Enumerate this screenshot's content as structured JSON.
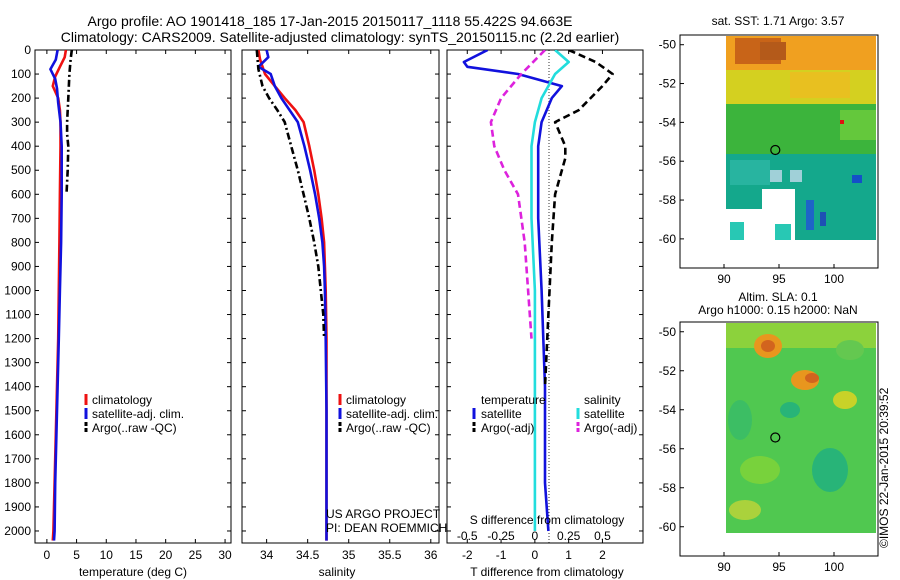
{
  "header": {
    "line1": "Argo profile: AO 1901418_185 17-Jan-2015 20150117_1118 55.422S 94.663E",
    "line2": "Climatology: CARS2009. Satellite-adjusted climatology: synTS_20150115.nc (2.2d earlier)"
  },
  "stamp": "©IMOS 22-Jan-2015 20:39:52",
  "colors": {
    "climatology": "#ee1111",
    "satellite": "#1111dd",
    "argo": "#000000",
    "sat_salinity": "#22dddd",
    "argo_salinity": "#dd22dd"
  },
  "chart_data": [
    {
      "type": "line",
      "id": "temperature",
      "xlabel": "temperature (deg C)",
      "xlim": [
        -2,
        31
      ],
      "xticks": [
        0,
        5,
        10,
        15,
        20,
        25,
        30
      ],
      "ylim": [
        0,
        2050
      ],
      "yticks": [
        0,
        100,
        200,
        300,
        400,
        500,
        600,
        700,
        800,
        900,
        1000,
        1100,
        1200,
        1300,
        1400,
        1500,
        1600,
        1700,
        1800,
        1900,
        2000
      ],
      "legend": [
        "climatology",
        "satellite-adj. clim.",
        "Argo(..raw -QC)"
      ],
      "series": [
        {
          "name": "climatology",
          "style": "solid",
          "color_key": "climatology",
          "points": [
            [
              3.2,
              0
            ],
            [
              3.0,
              30
            ],
            [
              2.2,
              70
            ],
            [
              1.4,
              110
            ],
            [
              1.0,
              150
            ],
            [
              1.9,
              200
            ],
            [
              2.2,
              250
            ],
            [
              2.3,
              300
            ],
            [
              2.3,
              400
            ],
            [
              2.2,
              600
            ],
            [
              2.1,
              800
            ],
            [
              2.0,
              1000
            ],
            [
              1.9,
              1200
            ],
            [
              1.7,
              1400
            ],
            [
              1.5,
              1600
            ],
            [
              1.3,
              1800
            ],
            [
              1.1,
              2000
            ],
            [
              1.0,
              2040
            ]
          ]
        },
        {
          "name": "satellite-adj. clim.",
          "style": "solid",
          "color_key": "satellite",
          "points": [
            [
              1.8,
              0
            ],
            [
              1.5,
              40
            ],
            [
              0.6,
              80
            ],
            [
              1.4,
              120
            ],
            [
              1.7,
              160
            ],
            [
              1.9,
              220
            ],
            [
              2.3,
              300
            ],
            [
              2.5,
              400
            ],
            [
              2.5,
              600
            ],
            [
              2.4,
              800
            ],
            [
              2.2,
              1000
            ],
            [
              2.0,
              1200
            ],
            [
              1.8,
              1400
            ],
            [
              1.6,
              1600
            ],
            [
              1.4,
              1800
            ],
            [
              1.3,
              2000
            ],
            [
              1.2,
              2040
            ]
          ]
        },
        {
          "name": "Argo(..raw -QC)",
          "style": "dashdot",
          "color_key": "argo",
          "points": [
            [
              4.2,
              0
            ],
            [
              4.0,
              40
            ],
            [
              3.8,
              100
            ],
            [
              3.6,
              200
            ],
            [
              3.4,
              300
            ],
            [
              3.4,
              350
            ],
            [
              3.6,
              400
            ],
            [
              3.5,
              500
            ],
            [
              3.3,
              600
            ]
          ]
        }
      ]
    },
    {
      "type": "line",
      "id": "salinity",
      "xlabel": "salinity",
      "xlim": [
        33.7,
        36.1
      ],
      "xticks": [
        34,
        34.5,
        35,
        35.5,
        36
      ],
      "ylim": [
        0,
        2050
      ],
      "legend": [
        "climatology",
        "satellite-adj. clim.",
        "Argo(..raw -QC)"
      ],
      "annotation": [
        "US ARGO PROJECT",
        "PI: DEAN ROEMMICH"
      ],
      "series": [
        {
          "name": "climatology",
          "style": "solid",
          "color_key": "climatology",
          "points": [
            [
              33.9,
              0
            ],
            [
              33.92,
              40
            ],
            [
              33.98,
              100
            ],
            [
              34.1,
              150
            ],
            [
              34.22,
              200
            ],
            [
              34.35,
              250
            ],
            [
              34.45,
              300
            ],
            [
              34.52,
              400
            ],
            [
              34.58,
              500
            ],
            [
              34.63,
              600
            ],
            [
              34.67,
              700
            ],
            [
              34.7,
              800
            ],
            [
              34.71,
              900
            ],
            [
              34.72,
              1000
            ],
            [
              34.73,
              1200
            ],
            [
              34.73,
              1500
            ],
            [
              34.73,
              2000
            ],
            [
              34.73,
              2040
            ]
          ]
        },
        {
          "name": "satellite-adj. clim.",
          "style": "solid",
          "color_key": "satellite",
          "points": [
            [
              34.0,
              0
            ],
            [
              34.02,
              30
            ],
            [
              33.9,
              70
            ],
            [
              34.05,
              100
            ],
            [
              34.1,
              150
            ],
            [
              34.18,
              200
            ],
            [
              34.28,
              250
            ],
            [
              34.38,
              300
            ],
            [
              34.46,
              400
            ],
            [
              34.53,
              500
            ],
            [
              34.59,
              600
            ],
            [
              34.64,
              700
            ],
            [
              34.68,
              800
            ],
            [
              34.7,
              900
            ],
            [
              34.71,
              1000
            ],
            [
              34.72,
              1200
            ],
            [
              34.73,
              1500
            ],
            [
              34.73,
              2000
            ],
            [
              34.73,
              2040
            ]
          ]
        },
        {
          "name": "Argo(..raw -QC)",
          "style": "dashdot",
          "color_key": "argo",
          "points": [
            [
              33.88,
              0
            ],
            [
              33.9,
              80
            ],
            [
              33.95,
              150
            ],
            [
              34.03,
              200
            ],
            [
              34.13,
              250
            ],
            [
              34.22,
              300
            ],
            [
              34.3,
              400
            ],
            [
              34.38,
              500
            ],
            [
              34.45,
              600
            ],
            [
              34.52,
              700
            ],
            [
              34.58,
              800
            ],
            [
              34.63,
              900
            ],
            [
              34.66,
              1000
            ],
            [
              34.69,
              1100
            ],
            [
              34.7,
              1200
            ]
          ]
        }
      ]
    },
    {
      "type": "line",
      "id": "differences",
      "xlabel": "T difference from climatology",
      "xlabel_top": "S difference from climatology",
      "xlim": [
        -2.6,
        3.2
      ],
      "xticks": [
        -2,
        -1,
        0,
        1,
        2
      ],
      "sticks": [
        {
          "label": "-0.5",
          "t": -2.0
        },
        {
          "label": "-0.25",
          "t": -1.0
        },
        {
          "label": "0",
          "t": 0
        },
        {
          "label": "0.25",
          "t": 1.0
        },
        {
          "label": "0.5",
          "t": 2.0
        }
      ],
      "ylim": [
        0,
        2050
      ],
      "legend_temperature_title": "temperature",
      "legend_salinity_title": "salinity",
      "legend_temperature": [
        "satellite",
        "Argo(-adj)"
      ],
      "legend_salinity": [
        "satellite",
        "Argo(-adj)"
      ],
      "series": [
        {
          "name": "temperature satellite",
          "style": "solid",
          "color_key": "satellite",
          "points": [
            [
              -1.4,
              0
            ],
            [
              -2.1,
              50
            ],
            [
              -2.0,
              70
            ],
            [
              -0.5,
              100
            ],
            [
              0.8,
              150
            ],
            [
              0.5,
              200
            ],
            [
              0.2,
              300
            ],
            [
              0.1,
              400
            ],
            [
              0.1,
              700
            ],
            [
              0.2,
              1000
            ],
            [
              0.3,
              1400
            ],
            [
              0.3,
              1800
            ],
            [
              0.4,
              2000
            ]
          ]
        },
        {
          "name": "temperature Argo(-adj)",
          "style": "dashed",
          "color_key": "argo",
          "points": [
            [
              1.0,
              0
            ],
            [
              1.8,
              50
            ],
            [
              2.3,
              100
            ],
            [
              2.0,
              150
            ],
            [
              1.3,
              250
            ],
            [
              0.6,
              300
            ],
            [
              0.9,
              400
            ],
            [
              0.9,
              450
            ],
            [
              0.8,
              500
            ],
            [
              0.6,
              600
            ],
            [
              0.5,
              800
            ],
            [
              0.4,
              1100
            ],
            [
              0.3,
              1400
            ]
          ]
        },
        {
          "name": "salinity satellite",
          "style": "solid",
          "color_key": "sat_salinity",
          "points": [
            [
              0.6,
              0
            ],
            [
              1.0,
              50
            ],
            [
              0.6,
              100
            ],
            [
              0.2,
              200
            ],
            [
              0.0,
              300
            ],
            [
              -0.1,
              400
            ],
            [
              -0.1,
              700
            ],
            [
              0.0,
              1000
            ],
            [
              0.0,
              1400
            ],
            [
              0.0,
              1800
            ],
            [
              0.0,
              2000
            ]
          ]
        },
        {
          "name": "salinity Argo(-adj)",
          "style": "dashed",
          "color_key": "argo_salinity",
          "points": [
            [
              0.3,
              0
            ],
            [
              -0.4,
              100
            ],
            [
              -1.0,
              200
            ],
            [
              -1.3,
              300
            ],
            [
              -1.2,
              400
            ],
            [
              -0.9,
              500
            ],
            [
              -0.5,
              600
            ],
            [
              -0.3,
              800
            ],
            [
              -0.2,
              1000
            ],
            [
              -0.1,
              1200
            ]
          ]
        }
      ]
    },
    {
      "type": "heatmap",
      "id": "sst_map",
      "title": "sat. SST: 1.71 Argo: 3.57",
      "xticks": [
        90,
        95,
        100
      ],
      "yticks": [
        -50,
        -52,
        -54,
        -56,
        -58,
        -60
      ],
      "xlim": [
        86,
        104
      ],
      "ylim": [
        -61.5,
        -49.5
      ],
      "argo_position": [
        94.663,
        -55.422
      ]
    },
    {
      "type": "heatmap",
      "id": "sla_map",
      "title_line1": "Altim. SLA: 0.1",
      "title_line2": "Argo h1000: 0.15 h2000: NaN",
      "xticks": [
        90,
        95,
        100
      ],
      "yticks": [
        -50,
        -52,
        -54,
        -56,
        -58,
        -60
      ],
      "xlim": [
        86,
        104
      ],
      "ylim": [
        -61.5,
        -49.5
      ],
      "argo_position": [
        94.663,
        -55.422
      ]
    }
  ]
}
